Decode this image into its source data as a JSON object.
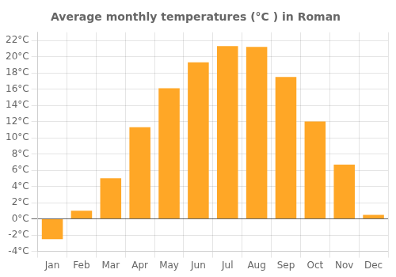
{
  "chart_data": {
    "type": "bar",
    "title": "Average monthly temperatures (°C ) in Roman",
    "categories": [
      "Jan",
      "Feb",
      "Mar",
      "Apr",
      "May",
      "Jun",
      "Jul",
      "Aug",
      "Sep",
      "Oct",
      "Nov",
      "Dec"
    ],
    "values": [
      -2.5,
      1.0,
      5.0,
      11.3,
      16.1,
      19.3,
      21.3,
      21.2,
      17.5,
      12.0,
      6.7,
      0.5
    ],
    "color": "#FFA726",
    "ylim": [
      -4,
      23
    ],
    "yticks": [
      {
        "value": -4,
        "label": "-4°C"
      },
      {
        "value": -2,
        "label": "-2°C"
      },
      {
        "value": 0,
        "label": "0°C"
      },
      {
        "value": 2,
        "label": "2°C"
      },
      {
        "value": 4,
        "label": "4°C"
      },
      {
        "value": 6,
        "label": "6°C"
      },
      {
        "value": 8,
        "label": "8°C"
      },
      {
        "value": 10,
        "label": "10°C"
      },
      {
        "value": 12,
        "label": "12°C"
      },
      {
        "value": 14,
        "label": "14°C"
      },
      {
        "value": 16,
        "label": "16°C"
      },
      {
        "value": 18,
        "label": "18°C"
      },
      {
        "value": 20,
        "label": "20°C"
      },
      {
        "value": 22,
        "label": "22°C"
      }
    ],
    "grid": true
  }
}
